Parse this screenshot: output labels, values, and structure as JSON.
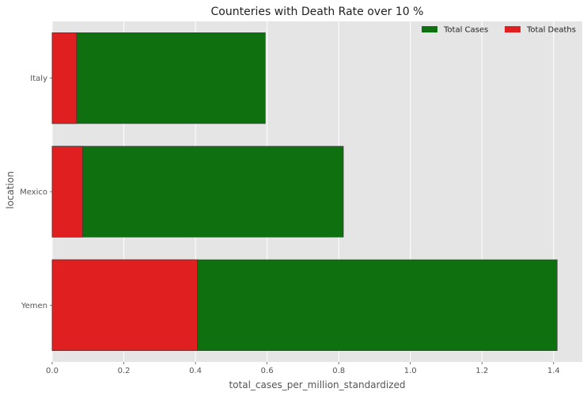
{
  "chart_data": {
    "type": "bar",
    "orientation": "horizontal",
    "stacking": "overlay",
    "title": "Counteries with Death Rate over 10 %",
    "xlabel": "total_cases_per_million_standardized",
    "ylabel": "location",
    "categories": [
      "Italy",
      "Mexico",
      "Yemen"
    ],
    "series": [
      {
        "name": "Total Cases",
        "color": "#0e700e",
        "values": [
          0.595,
          0.813,
          1.41
        ]
      },
      {
        "name": "Total Deaths",
        "color": "#e02020",
        "values": [
          0.068,
          0.085,
          0.405
        ]
      }
    ],
    "xlim": [
      0,
      1.48
    ],
    "xticks": [
      0.0,
      0.2,
      0.4,
      0.6,
      0.8,
      1.0,
      1.2,
      1.4
    ],
    "xtick_labels": [
      "0.0",
      "0.2",
      "0.4",
      "0.6",
      "0.8",
      "1.0",
      "1.2",
      "1.4"
    ],
    "grid": true,
    "background": "#e5e5e5",
    "legend": {
      "placement": "top-right",
      "columns": 2
    }
  }
}
